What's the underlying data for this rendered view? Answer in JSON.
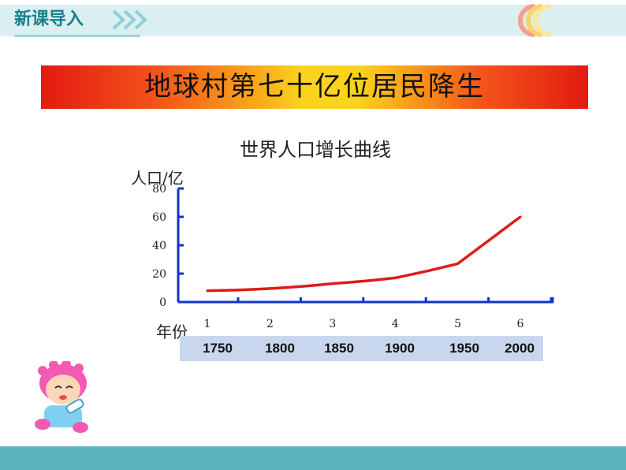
{
  "header": {
    "title": "新课导入"
  },
  "banner": {
    "text": "地球村第七十亿位居民降生"
  },
  "chart_data": {
    "type": "line",
    "title": "世界人口增长曲线",
    "ylabel": "人口/亿",
    "xlabel": "年份",
    "ylim": [
      0,
      80
    ],
    "yticks": [
      0,
      20,
      40,
      60,
      80
    ],
    "x": [
      1,
      2,
      3,
      4,
      5,
      6
    ],
    "xtick_labels": [
      "1",
      "2",
      "3",
      "4",
      "5",
      "6"
    ],
    "series": [
      {
        "values": [
          8,
          9.5,
          13,
          17,
          27,
          60
        ],
        "color": "#e01b1b"
      }
    ],
    "year_labels": [
      "1750",
      "1800",
      "1850",
      "1900",
      "1950",
      "2000"
    ],
    "axis_color": "#1133cc",
    "grid": false
  },
  "colors": {
    "accent": "#17808d",
    "footer": "#5bb3c0",
    "banner_edge": "#e31a12",
    "banner_center": "#fbd31c"
  }
}
